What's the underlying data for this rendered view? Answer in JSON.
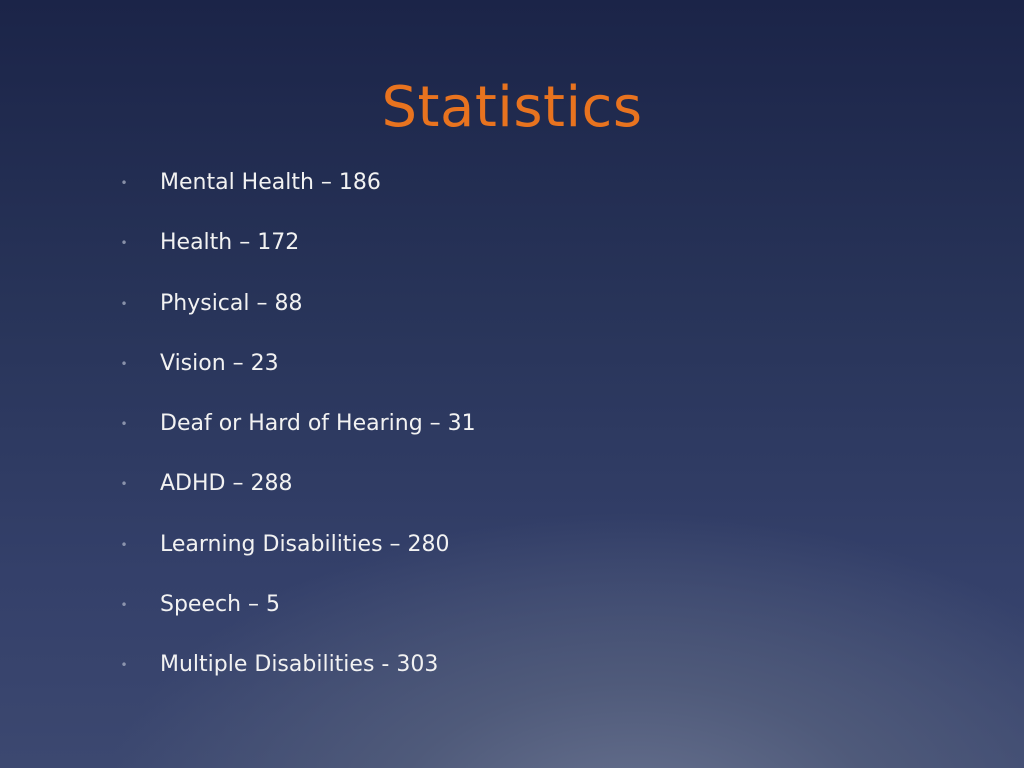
{
  "colors": {
    "title": "#e8731f",
    "text": "#f2f2f2",
    "bullet": "#a9b0c4"
  },
  "slide": {
    "title": "Statistics",
    "bullet_icon": "bullet-dot",
    "items": [
      {
        "text": "Mental Health – 186"
      },
      {
        "text": "Health – 172"
      },
      {
        "text": "Physical – 88"
      },
      {
        "text": "Vision – 23"
      },
      {
        "text": "Deaf or Hard of Hearing – 31"
      },
      {
        "text": "ADHD – 288"
      },
      {
        "text": "Learning Disabilities – 280"
      },
      {
        "text": "Speech – 5"
      },
      {
        "text": "Multiple Disabilities - 303"
      }
    ]
  }
}
